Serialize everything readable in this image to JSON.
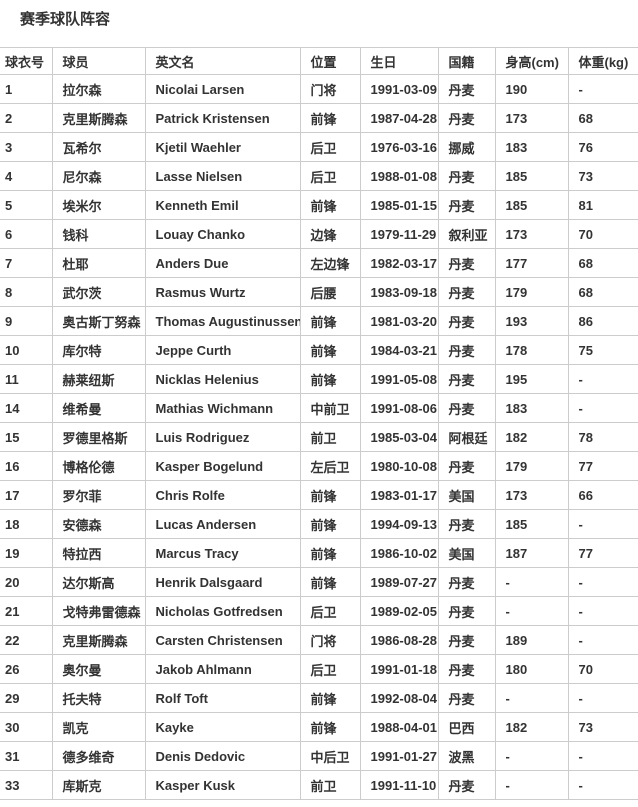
{
  "page": {
    "title": "赛季球队阵容"
  },
  "table": {
    "columns": [
      "球衣号",
      "球员",
      "英文名",
      "位置",
      "生日",
      "国籍",
      "身高(cm)",
      "体重(kg)"
    ],
    "rows": [
      [
        "1",
        "拉尔森",
        "Nicolai Larsen",
        "门将",
        "1991-03-09",
        "丹麦",
        "190",
        "-"
      ],
      [
        "2",
        "克里斯腾森",
        "Patrick Kristensen",
        "前锋",
        "1987-04-28",
        "丹麦",
        "173",
        "68"
      ],
      [
        "3",
        "瓦希尔",
        "Kjetil Waehler",
        "后卫",
        "1976-03-16",
        "挪威",
        "183",
        "76"
      ],
      [
        "4",
        "尼尔森",
        "Lasse Nielsen",
        "后卫",
        "1988-01-08",
        "丹麦",
        "185",
        "73"
      ],
      [
        "5",
        "埃米尔",
        "Kenneth Emil",
        "前锋",
        "1985-01-15",
        "丹麦",
        "185",
        "81"
      ],
      [
        "6",
        "钱科",
        "Louay Chanko",
        "边锋",
        "1979-11-29",
        "叙利亚",
        "173",
        "70"
      ],
      [
        "7",
        "杜耶",
        "Anders Due",
        "左边锋",
        "1982-03-17",
        "丹麦",
        "177",
        "68"
      ],
      [
        "8",
        "武尔茨",
        "Rasmus Wurtz",
        "后腰",
        "1983-09-18",
        "丹麦",
        "179",
        "68"
      ],
      [
        "9",
        "奥古斯丁努森",
        "Thomas Augustinussen",
        "前锋",
        "1981-03-20",
        "丹麦",
        "193",
        "86"
      ],
      [
        "10",
        "库尔特",
        "Jeppe Curth",
        "前锋",
        "1984-03-21",
        "丹麦",
        "178",
        "75"
      ],
      [
        "11",
        "赫莱纽斯",
        "Nicklas Helenius",
        "前锋",
        "1991-05-08",
        "丹麦",
        "195",
        "-"
      ],
      [
        "14",
        "维希曼",
        "Mathias Wichmann",
        "中前卫",
        "1991-08-06",
        "丹麦",
        "183",
        "-"
      ],
      [
        "15",
        "罗德里格斯",
        "Luis Rodriguez",
        "前卫",
        "1985-03-04",
        "阿根廷",
        "182",
        "78"
      ],
      [
        "16",
        "博格伦德",
        "Kasper Bogelund",
        "左后卫",
        "1980-10-08",
        "丹麦",
        "179",
        "77"
      ],
      [
        "17",
        "罗尔菲",
        "Chris Rolfe",
        "前锋",
        "1983-01-17",
        "美国",
        "173",
        "66"
      ],
      [
        "18",
        "安德森",
        "Lucas Andersen",
        "前锋",
        "1994-09-13",
        "丹麦",
        "185",
        "-"
      ],
      [
        "19",
        "特拉西",
        "Marcus Tracy",
        "前锋",
        "1986-10-02",
        "美国",
        "187",
        "77"
      ],
      [
        "20",
        "达尔斯高",
        "Henrik Dalsgaard",
        "前锋",
        "1989-07-27",
        "丹麦",
        "-",
        "-"
      ],
      [
        "21",
        "戈特弗雷德森",
        "Nicholas Gotfredsen",
        "后卫",
        "1989-02-05",
        "丹麦",
        "-",
        "-"
      ],
      [
        "22",
        "克里斯腾森",
        "Carsten Christensen",
        "门将",
        "1986-08-28",
        "丹麦",
        "189",
        "-"
      ],
      [
        "26",
        "奥尔曼",
        "Jakob Ahlmann",
        "后卫",
        "1991-01-18",
        "丹麦",
        "180",
        "70"
      ],
      [
        "29",
        "托夫特",
        "Rolf Toft",
        "前锋",
        "1992-08-04",
        "丹麦",
        "-",
        "-"
      ],
      [
        "30",
        "凯克",
        "Kayke",
        "前锋",
        "1988-04-01",
        "巴西",
        "182",
        "73"
      ],
      [
        "31",
        "德多维奇",
        "Denis Dedovic",
        "中后卫",
        "1991-01-27",
        "波黑",
        "-",
        "-"
      ],
      [
        "33",
        "库斯克",
        "Kasper Kusk",
        "前卫",
        "1991-11-10",
        "丹麦",
        "-",
        "-"
      ]
    ]
  }
}
